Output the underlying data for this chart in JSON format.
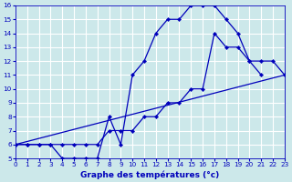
{
  "xlabel": "Graphe des températures (°c)",
  "bg_color": "#cce8ea",
  "grid_color": "#ffffff",
  "line_color": "#0000bb",
  "xlim": [
    0,
    23
  ],
  "ylim": [
    5,
    16
  ],
  "xticks": [
    0,
    1,
    2,
    3,
    4,
    5,
    6,
    7,
    8,
    9,
    10,
    11,
    12,
    13,
    14,
    15,
    16,
    17,
    18,
    19,
    20,
    21,
    22,
    23
  ],
  "yticks": [
    5,
    6,
    7,
    8,
    9,
    10,
    11,
    12,
    13,
    14,
    15,
    16
  ],
  "line1_x": [
    0,
    1,
    2,
    3,
    4,
    5,
    6,
    7,
    8,
    9,
    10,
    11,
    12,
    13,
    14,
    15,
    16,
    17,
    18,
    19,
    20,
    21
  ],
  "line1_y": [
    6,
    6,
    6,
    6,
    5,
    5,
    5,
    5,
    8,
    6,
    11,
    12,
    14,
    15,
    15,
    16,
    16,
    16,
    15,
    14,
    12,
    11
  ],
  "line2_x": [
    0,
    1,
    2,
    3,
    4,
    5,
    6,
    7,
    8,
    9,
    10,
    11,
    12,
    13,
    14,
    15,
    16,
    17,
    18,
    19,
    20,
    21,
    22,
    23
  ],
  "line2_y": [
    6,
    6,
    6,
    6,
    6,
    6,
    6,
    6,
    7,
    7,
    7,
    8,
    8,
    9,
    9,
    10,
    10,
    14,
    13,
    13,
    12,
    12,
    12,
    11
  ],
  "line3_x": [
    0,
    23
  ],
  "line3_y": [
    6,
    11
  ]
}
